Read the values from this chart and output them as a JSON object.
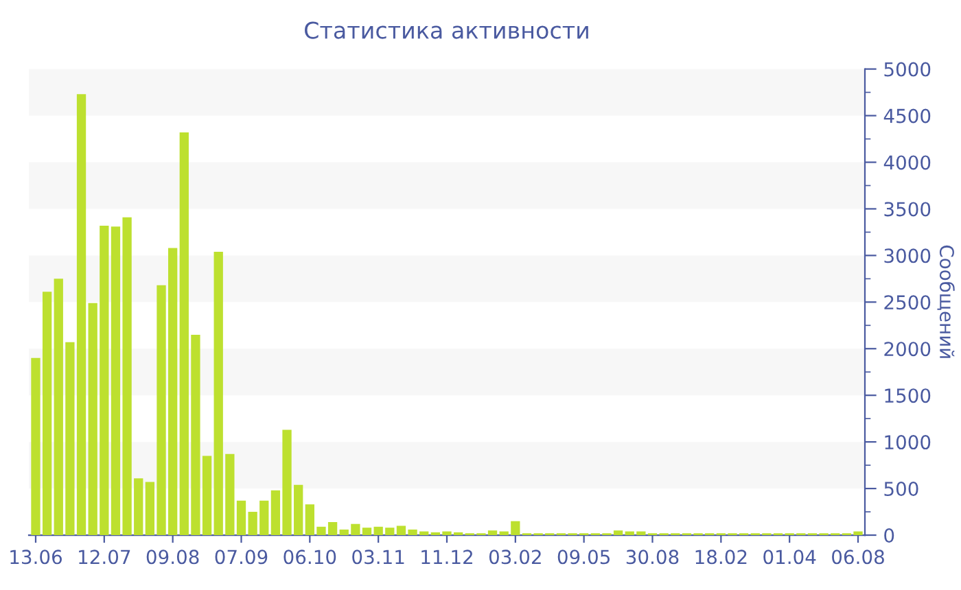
{
  "chart_data": {
    "type": "bar",
    "title": "Статистика активности",
    "ylabel": "Сообщений",
    "categories": [
      "13.06",
      null,
      null,
      null,
      null,
      null,
      "12.07",
      null,
      null,
      null,
      null,
      null,
      "09.08",
      null,
      null,
      null,
      null,
      null,
      "07.09",
      null,
      null,
      null,
      null,
      null,
      "06.10",
      null,
      null,
      null,
      null,
      null,
      "03.11",
      null,
      null,
      null,
      null,
      null,
      "11.12",
      null,
      null,
      null,
      null,
      null,
      "03.02",
      null,
      null,
      null,
      null,
      null,
      "09.05",
      null,
      null,
      null,
      null,
      null,
      "30.08",
      null,
      null,
      null,
      null,
      null,
      "18.02",
      null,
      null,
      null,
      null,
      null,
      "01.04",
      null,
      null,
      null,
      null,
      null,
      "06.08"
    ],
    "values": [
      1900,
      2610,
      2750,
      2070,
      4730,
      2490,
      3320,
      3310,
      3410,
      610,
      570,
      2680,
      3080,
      4320,
      2150,
      850,
      3040,
      870,
      370,
      250,
      370,
      480,
      1130,
      540,
      330,
      90,
      140,
      60,
      120,
      80,
      90,
      80,
      100,
      60,
      40,
      30,
      40,
      30,
      20,
      20,
      50,
      40,
      150,
      20,
      20,
      20,
      20,
      20,
      20,
      20,
      20,
      50,
      40,
      40,
      20,
      20,
      20,
      20,
      20,
      20,
      20,
      20,
      20,
      20,
      20,
      20,
      20,
      20,
      20,
      20,
      20,
      20,
      40
    ],
    "color": "#bde02f",
    "ylim": [
      0,
      5000
    ],
    "yticks": [
      0,
      500,
      1000,
      1500,
      2000,
      2500,
      3000,
      3500,
      4000,
      4500,
      5000
    ],
    "bands": [
      {
        "axis": "y",
        "from": 500,
        "to": 1000,
        "color": "#f7f7f7"
      },
      {
        "axis": "y",
        "from": 1500,
        "to": 2000,
        "color": "#f7f7f7"
      },
      {
        "axis": "y",
        "from": 2500,
        "to": 3000,
        "color": "#f7f7f7"
      },
      {
        "axis": "y",
        "from": 3500,
        "to": 4000,
        "color": "#f7f7f7"
      },
      {
        "axis": "y",
        "from": 4500,
        "to": 5000,
        "color": "#f7f7f7"
      }
    ]
  }
}
